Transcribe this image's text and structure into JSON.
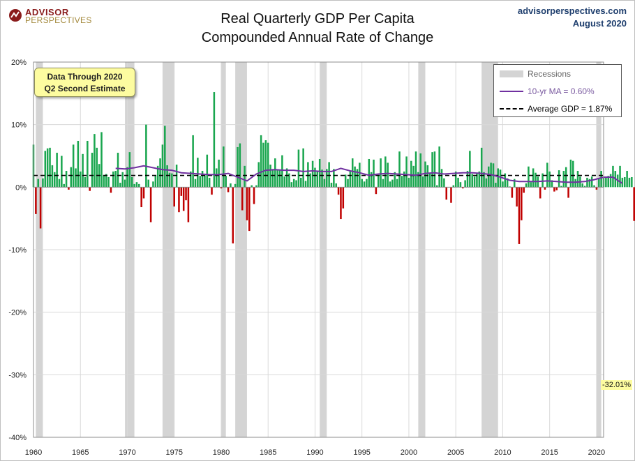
{
  "header": {
    "logo_line1": "ADVISOR",
    "logo_line2": "PERSPECTIVES",
    "title_line1": "Real Quarterly GDP Per Capita",
    "title_line2": "Compounded Annual Rate of Change",
    "source_site": "advisorperspectives.com",
    "source_date": "August 2020"
  },
  "note": {
    "line1": "Data Through 2020",
    "line2": "Q2 Second Estimate"
  },
  "legend": {
    "recessions": "Recessions",
    "ma": "10-yr MA = 0.60%",
    "avg": "Average GDP = 1.87%"
  },
  "callout": {
    "label": "-32.01%"
  },
  "colors": {
    "positive": "#1aa64f",
    "negative": "#c00000",
    "ma_line": "#7030a0",
    "recession": "#d4d4d4",
    "average": "#000000",
    "ma_label": "#7a5aa0"
  },
  "chart_data": {
    "type": "bar",
    "x_start": 1960.0,
    "x_step": 0.25,
    "xlim": [
      1960,
      2020.75
    ],
    "ylim": [
      -40,
      20
    ],
    "x_ticks": [
      1960,
      1965,
      1970,
      1975,
      1980,
      1985,
      1990,
      1995,
      2000,
      2005,
      2010,
      2015,
      2020
    ],
    "y_ticks": [
      20,
      10,
      0,
      -10,
      -20,
      -30,
      -40
    ],
    "y_tick_labels": [
      "20%",
      "10%",
      "0%",
      "-10%",
      "-20%",
      "-30%",
      "-40%"
    ],
    "values": [
      6.8,
      -4.3,
      1.3,
      -6.6,
      1.4,
      5.8,
      6.2,
      6.3,
      3.5,
      2.4,
      5.5,
      1.3,
      5.0,
      0.5,
      2.6,
      -0.4,
      3.2,
      6.8,
      3.0,
      7.4,
      2.5,
      5.3,
      1.6,
      7.4,
      -0.6,
      5.5,
      8.5,
      6.3,
      3.7,
      8.8,
      1.9,
      2.1,
      1.6,
      -0.9,
      2.5,
      2.6,
      5.5,
      0.7,
      2.4,
      1.2,
      3.2,
      5.6,
      1.6,
      0.5,
      0.8,
      0.5,
      -3.2,
      -1.8,
      10.0,
      1.2,
      -5.6,
      0.9,
      1.8,
      3.4,
      4.6,
      6.8,
      9.8,
      3.5,
      2.3,
      2.2,
      -3.1,
      3.6,
      -4.0,
      -1.4,
      -3.8,
      -2.1,
      -5.6,
      2.5,
      8.3,
      1.3,
      4.7,
      1.8,
      2.6,
      1.9,
      5.2,
      1.5,
      -1.2,
      15.2,
      3.0,
      4.4,
      -0.2,
      6.5,
      1.8,
      -0.8,
      0.6,
      -9.0,
      0.5,
      6.4,
      7.0,
      -3.7,
      3.4,
      -5.3,
      -7.0,
      0.3,
      -2.7,
      0.3,
      4.0,
      8.3,
      7.1,
      7.5,
      7.1,
      3.6,
      2.9,
      4.6,
      2.7,
      2.7,
      5.1,
      1.7,
      3.0,
      2.2,
      0.8,
      1.3,
      1.1,
      6.0,
      1.5,
      6.2,
      1.0,
      4.0,
      2.2,
      4.2,
      3.1,
      2.5,
      4.5,
      2.8,
      1.3,
      2.9,
      4.0,
      0.7,
      2.9,
      0.6,
      -1.2,
      -5.1,
      -3.4,
      2.0,
      1.3,
      2.6,
      4.6,
      3.3,
      2.9,
      3.9,
      1.3,
      0.9,
      1.3,
      4.5,
      2.4,
      4.4,
      -1.1,
      1.9,
      4.6,
      1.3,
      4.9,
      3.9,
      0.9,
      1.2,
      2.4,
      1.3,
      5.7,
      1.8,
      2.5,
      4.9,
      1.5,
      4.2,
      3.4,
      5.7,
      2.4,
      5.4,
      1.7,
      4.1,
      3.5,
      2.3,
      5.6,
      5.7,
      0.3,
      6.5,
      2.9,
      1.4,
      -2.0,
      0.0,
      -2.5,
      0.3,
      2.5,
      1.5,
      0.8,
      -0.2,
      1.1,
      2.6,
      5.8,
      2.1,
      1.7,
      2.2,
      2.5,
      6.3,
      2.4,
      1.4,
      3.3,
      3.9,
      3.8,
      0.7,
      3.0,
      2.8,
      0.9,
      2.2,
      1.4,
      0.1,
      -1.7,
      1.3,
      -3.1,
      -9.1,
      -5.3,
      -0.9,
      0.6,
      3.3,
      0.8,
      3.0,
      2.3,
      1.7,
      -1.8,
      2.2,
      -0.4,
      3.9,
      2.5,
      1.1,
      -0.7,
      -0.5,
      2.7,
      0.2,
      2.6,
      3.2,
      -1.7,
      4.4,
      4.2,
      1.3,
      2.6,
      1.7,
      0.6,
      0.2,
      1.5,
      1.3,
      1.7,
      0.3,
      -0.4,
      1.4,
      2.6,
      1.5,
      1.6,
      1.8,
      2.1,
      3.4,
      2.6,
      2.0,
      3.4,
      1.5,
      1.6,
      2.6,
      1.5,
      1.6,
      -5.4,
      -32.01
    ],
    "ma": {
      "start": 1968.75,
      "step": 1,
      "values": [
        3.0,
        2.9,
        3.1,
        3.4,
        3.1,
        2.8,
        2.7,
        2.3,
        2.2,
        2.1,
        2.0,
        2.0,
        2.2,
        1.6,
        1.0,
        2.1,
        2.7,
        2.8,
        2.7,
        2.7,
        2.5,
        2.6,
        2.5,
        2.5,
        3.0,
        2.6,
        2.3,
        1.9,
        2.1,
        2.2,
        2.1,
        2.0,
        1.9,
        2.2,
        2.3,
        2.1,
        2.2,
        2.3,
        2.3,
        2.2,
        2.0,
        1.6,
        1.1,
        0.9,
        0.9,
        0.9,
        1.0,
        0.9,
        0.8,
        0.8,
        0.9,
        1.2,
        1.6,
        1.6,
        0.6
      ]
    },
    "average": 1.87,
    "recessions": [
      [
        1960.25,
        1961.0
      ],
      [
        1969.75,
        1970.75
      ],
      [
        1973.75,
        1975.0
      ],
      [
        1980.0,
        1980.5
      ],
      [
        1981.5,
        1982.75
      ],
      [
        1990.5,
        1991.25
      ],
      [
        2001.0,
        2001.75
      ],
      [
        2007.75,
        2009.5
      ],
      [
        2020.0,
        2020.5
      ]
    ]
  }
}
